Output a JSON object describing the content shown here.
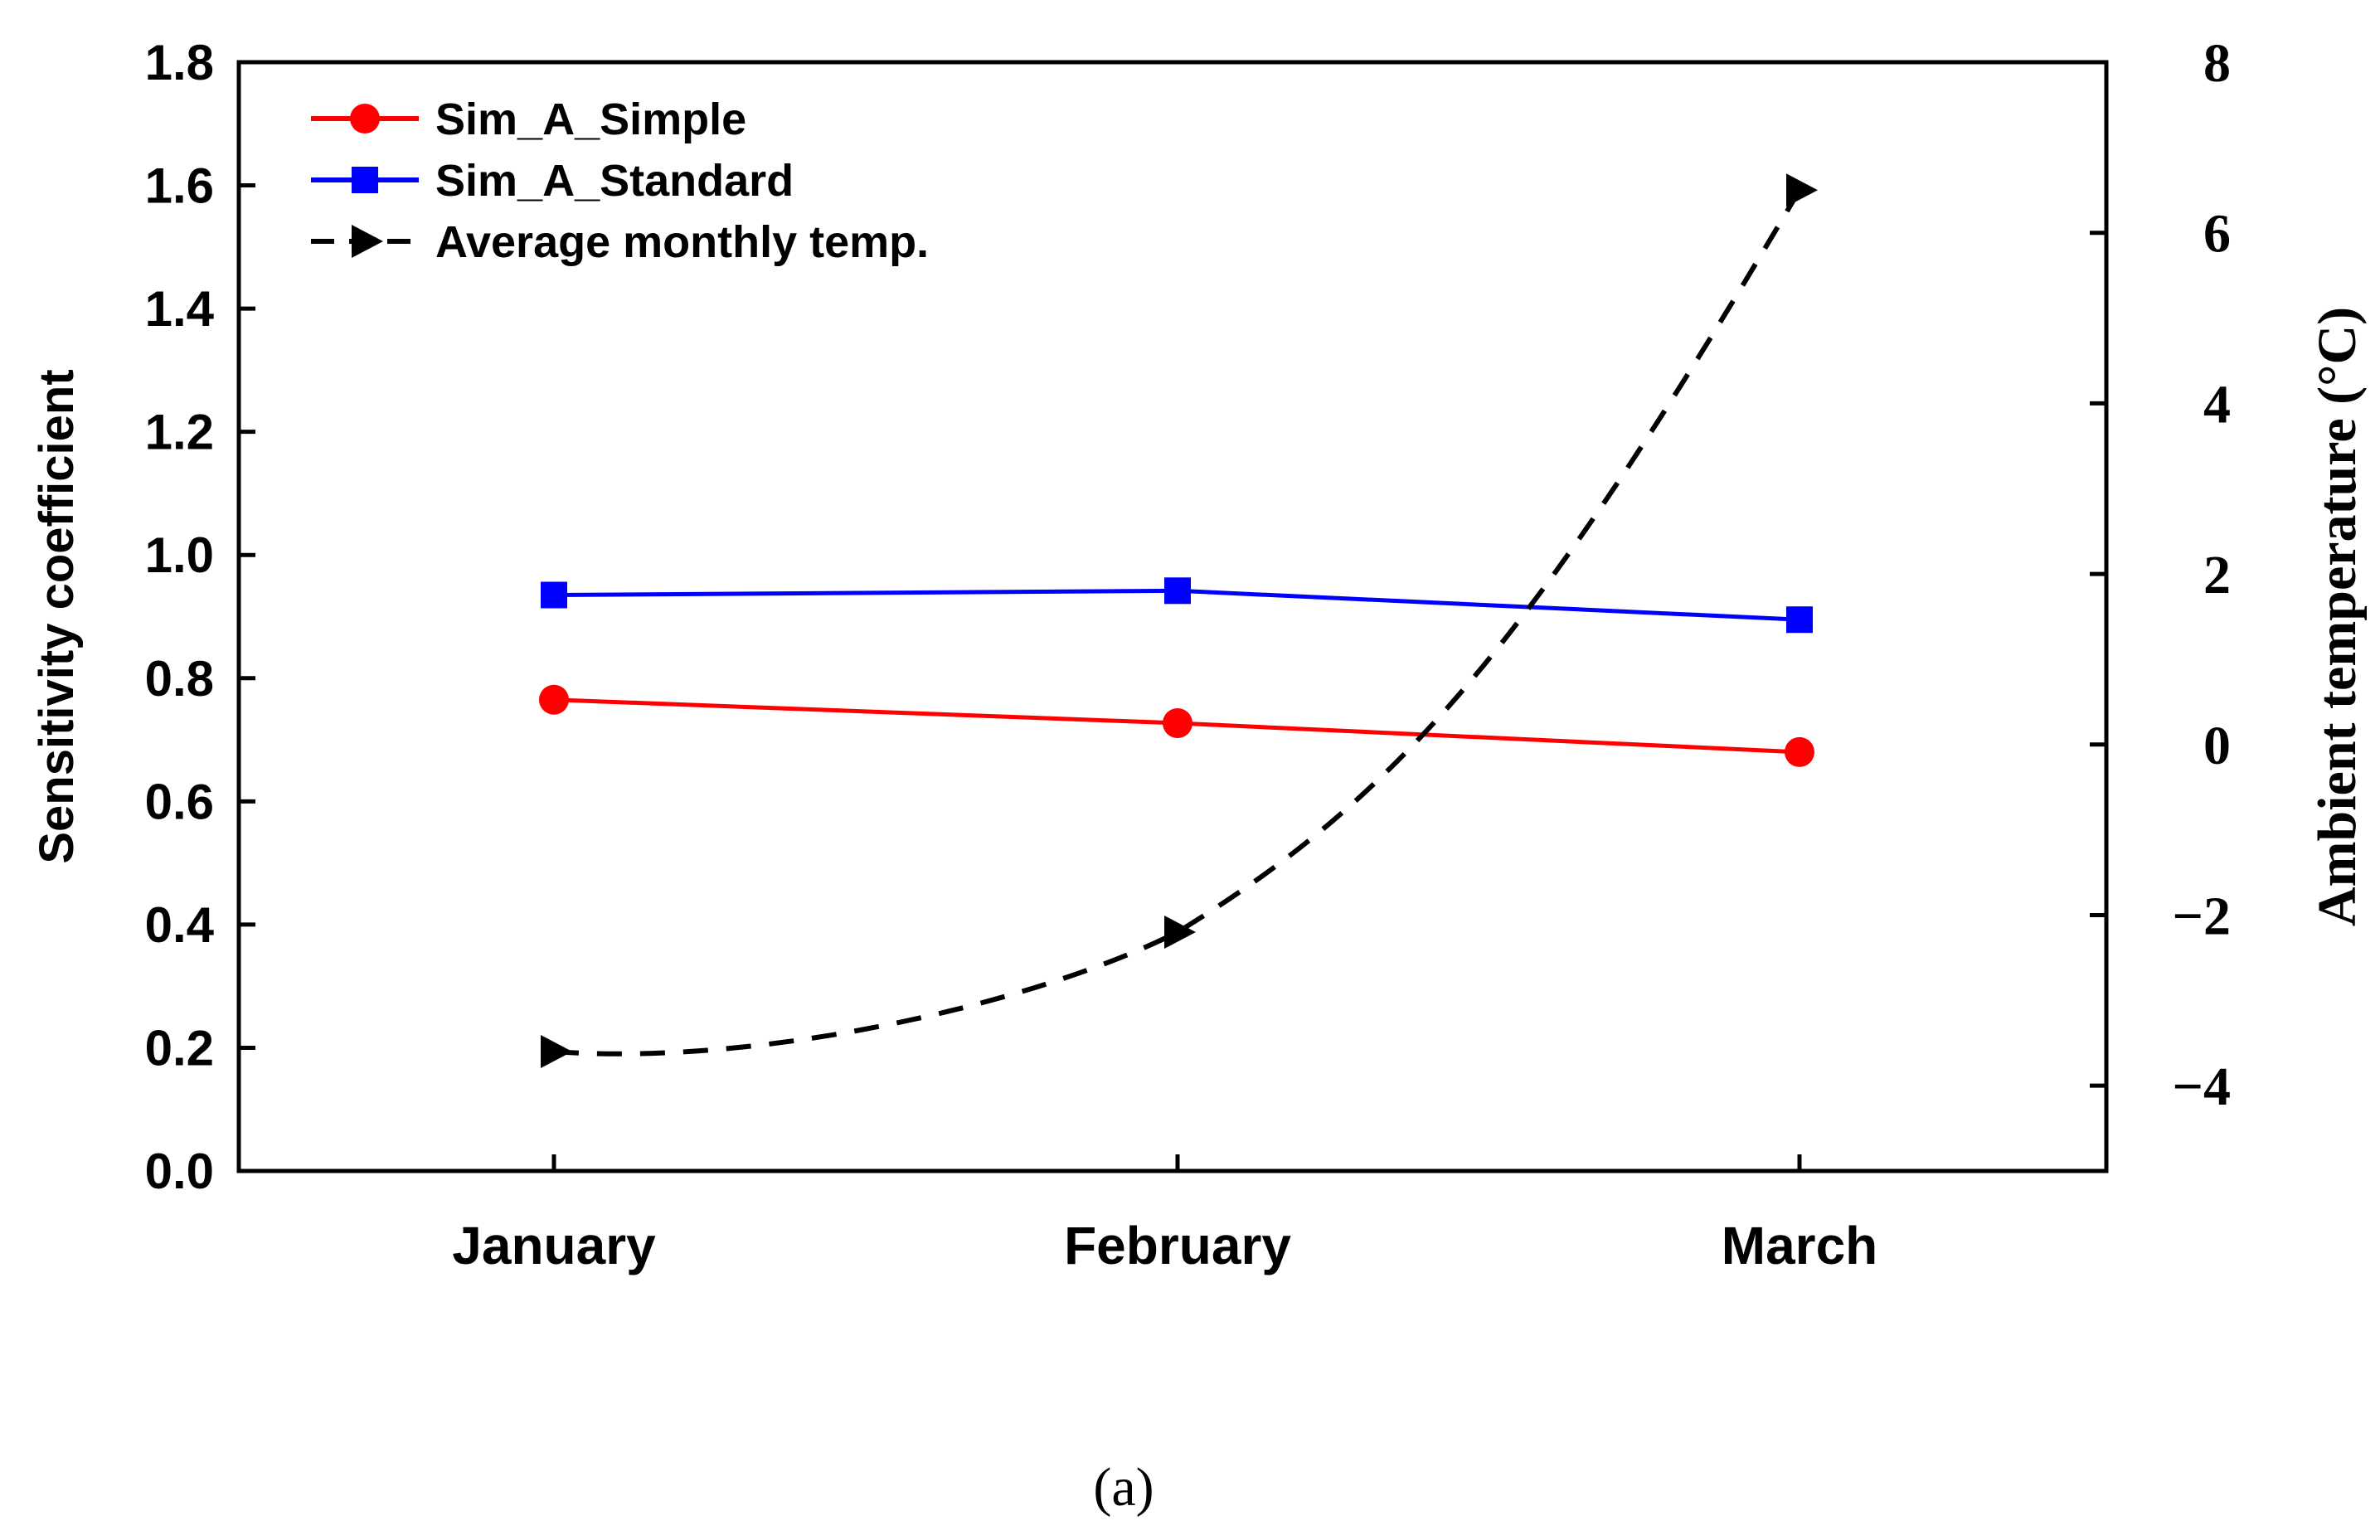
{
  "chart_data": {
    "type": "line",
    "categories": [
      "January",
      "February",
      "March"
    ],
    "y_left": {
      "label": "Sensitivity coefficient",
      "range": [
        0.0,
        1.8
      ],
      "ticks": [
        "0.0",
        "0.2",
        "0.4",
        "0.6",
        "0.8",
        "1.0",
        "1.2",
        "1.4",
        "1.6",
        "1.8"
      ],
      "tick_values": [
        0.0,
        0.2,
        0.4,
        0.6,
        0.8,
        1.0,
        1.2,
        1.4,
        1.6,
        1.8
      ]
    },
    "y_right": {
      "label": "Ambient temperature (°C)",
      "range": [
        -5,
        8
      ],
      "ticks": [
        "−4",
        "−2",
        "0",
        "2",
        "4",
        "6",
        "8"
      ],
      "tick_values": [
        -4,
        -2,
        0,
        2,
        4,
        6,
        8
      ]
    },
    "series": [
      {
        "name": "Sim_A_Simple",
        "axis": "left",
        "color": "#ff0000",
        "marker": "circle",
        "line": "solid",
        "values": [
          0.765,
          0.727,
          0.68
        ]
      },
      {
        "name": "Sim_A_Standard",
        "axis": "left",
        "color": "#0000ff",
        "marker": "square",
        "line": "solid",
        "values": [
          0.935,
          0.942,
          0.895
        ]
      },
      {
        "name": "Average monthly temp.",
        "axis": "right",
        "color": "#000000",
        "marker": "triangle-right",
        "line": "dashed",
        "values": [
          -3.6,
          -2.2,
          6.5
        ]
      }
    ],
    "legend_position": "top-left",
    "grid": false
  },
  "caption": "(a)"
}
